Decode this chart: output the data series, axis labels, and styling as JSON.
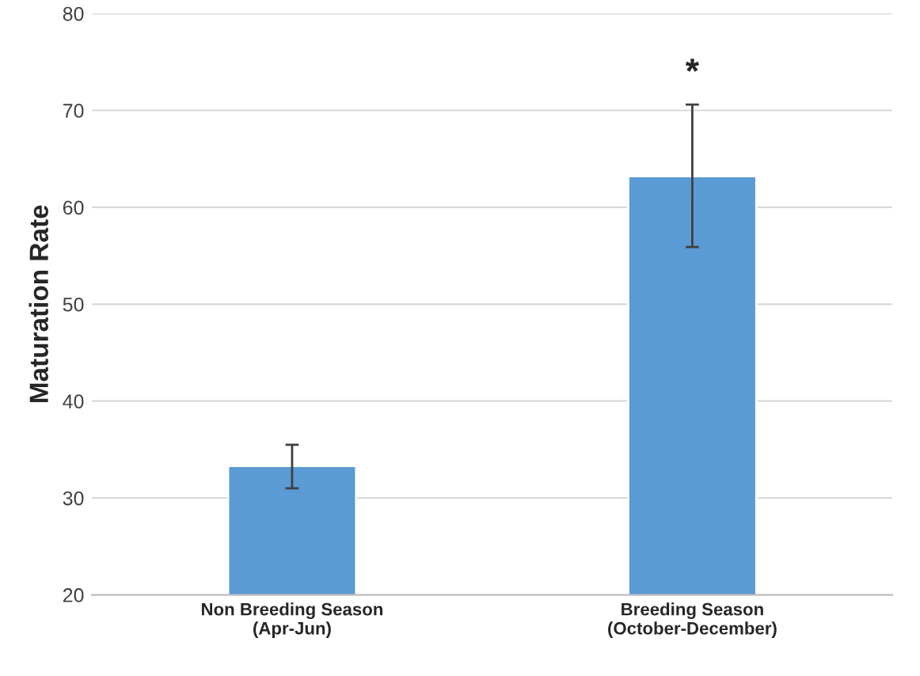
{
  "chart_data": {
    "type": "bar",
    "ylabel": "Maturation Rate",
    "categories": [
      "Non Breeding Season\n(Apr-Jun)",
      "Breeding Season\n(October-December)"
    ],
    "values": [
      33.3,
      63.2
    ],
    "color": "#5b9bd5",
    "errors": [
      [
        31.0,
        35.5
      ],
      [
        55.9,
        70.6
      ]
    ],
    "ylim": [
      20,
      80
    ],
    "yticks": [
      20,
      30,
      40,
      50,
      60,
      70,
      80
    ],
    "grid": "y",
    "annotations": [
      "*"
    ]
  }
}
